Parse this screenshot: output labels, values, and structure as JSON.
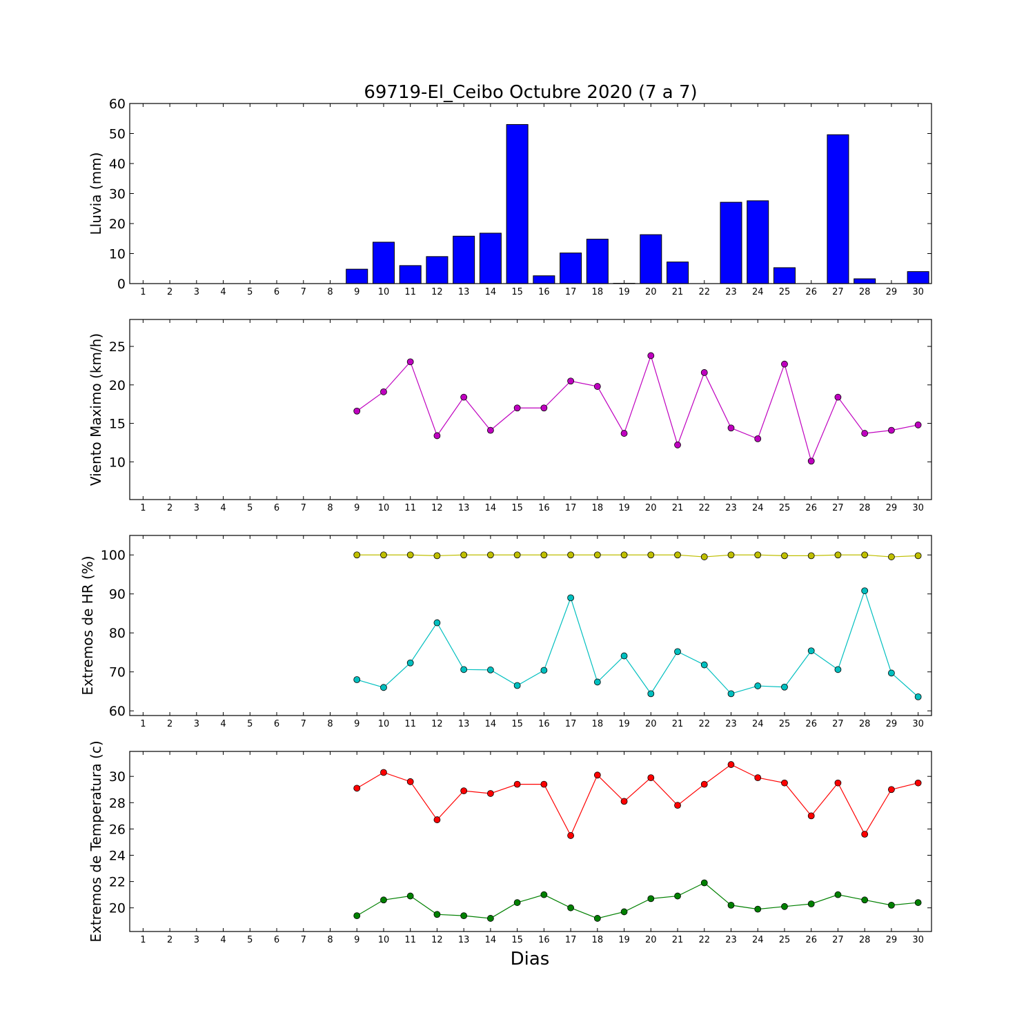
{
  "title": "69719-El_Ceibo Octubre 2020  (7 a 7)",
  "xlabel": "Dias",
  "days": [
    1,
    2,
    3,
    4,
    5,
    6,
    7,
    8,
    9,
    10,
    11,
    12,
    13,
    14,
    15,
    16,
    17,
    18,
    19,
    20,
    21,
    22,
    23,
    24,
    25,
    26,
    27,
    28,
    29,
    30
  ],
  "chart_data": [
    {
      "type": "bar",
      "ylabel": "Lluvia (mm)",
      "ylim": [
        0,
        60
      ],
      "yticks": [
        0,
        10,
        20,
        30,
        40,
        50,
        60
      ],
      "categories": [
        1,
        2,
        3,
        4,
        5,
        6,
        7,
        8,
        9,
        10,
        11,
        12,
        13,
        14,
        15,
        16,
        17,
        18,
        19,
        20,
        21,
        22,
        23,
        24,
        25,
        26,
        27,
        28,
        29,
        30
      ],
      "values": [
        null,
        null,
        null,
        null,
        null,
        null,
        null,
        null,
        4.8,
        13.8,
        6.0,
        9.0,
        15.8,
        16.8,
        53.0,
        2.6,
        10.2,
        14.8,
        0.1,
        16.3,
        7.2,
        0.0,
        27.1,
        27.6,
        5.3,
        0.0,
        49.6,
        1.6,
        0.0,
        4.0
      ],
      "colors": {
        "fill": "#0000ff",
        "edge": "#000000"
      }
    },
    {
      "type": "line",
      "ylabel": "Viento Maximo (km/h)",
      "ylim": [
        5.1,
        28.5
      ],
      "yticks": [
        10,
        15,
        20,
        25
      ],
      "x": [
        9,
        10,
        11,
        12,
        13,
        14,
        15,
        16,
        17,
        18,
        19,
        20,
        21,
        22,
        23,
        24,
        25,
        26,
        27,
        28,
        29,
        30
      ],
      "series": [
        {
          "values": [
            16.6,
            19.1,
            23.0,
            13.4,
            18.4,
            14.1,
            17.0,
            17.0,
            20.5,
            19.8,
            13.7,
            23.8,
            12.2,
            21.6,
            14.4,
            13.0,
            22.7,
            10.1,
            18.4,
            13.7,
            14.1,
            14.8
          ],
          "color": "#bf00bf"
        }
      ]
    },
    {
      "type": "line",
      "ylabel": "Extremos de HR (%)",
      "ylim": [
        58.8,
        105.0
      ],
      "yticks": [
        60,
        70,
        80,
        90,
        100
      ],
      "x": [
        9,
        10,
        11,
        12,
        13,
        14,
        15,
        16,
        17,
        18,
        19,
        20,
        21,
        22,
        23,
        24,
        25,
        26,
        27,
        28,
        29,
        30
      ],
      "series": [
        {
          "values": [
            100.0,
            100.0,
            100.0,
            99.8,
            100.0,
            100.0,
            100.0,
            100.0,
            100.0,
            100.0,
            100.0,
            100.0,
            100.0,
            99.5,
            100.0,
            100.0,
            99.8,
            99.8,
            100.0,
            100.0,
            99.5,
            99.8
          ],
          "color": "#bfbf00"
        },
        {
          "values": [
            68.0,
            66.0,
            72.3,
            82.6,
            70.6,
            70.5,
            66.5,
            70.4,
            89.0,
            67.4,
            74.1,
            64.4,
            75.2,
            71.8,
            64.4,
            66.4,
            66.1,
            75.4,
            70.6,
            90.8,
            69.7,
            63.6
          ],
          "color": "#00bfbf"
        }
      ]
    },
    {
      "type": "line",
      "ylabel": "Extremos de Temperatura (c)",
      "ylim": [
        18.2,
        31.9
      ],
      "yticks": [
        20,
        22,
        24,
        26,
        28,
        30
      ],
      "x": [
        9,
        10,
        11,
        12,
        13,
        14,
        15,
        16,
        17,
        18,
        19,
        20,
        21,
        22,
        23,
        24,
        25,
        26,
        27,
        28,
        29,
        30
      ],
      "series": [
        {
          "values": [
            29.1,
            30.3,
            29.6,
            26.7,
            28.9,
            28.7,
            29.4,
            29.4,
            25.5,
            30.1,
            28.1,
            29.9,
            27.8,
            29.4,
            30.9,
            29.9,
            29.5,
            27.0,
            29.5,
            25.6,
            29.0,
            29.5
          ],
          "color": "#ff0000"
        },
        {
          "values": [
            19.4,
            20.6,
            20.9,
            19.5,
            19.4,
            19.2,
            20.4,
            21.0,
            20.0,
            19.2,
            19.7,
            20.7,
            20.9,
            21.9,
            20.2,
            19.9,
            20.1,
            20.3,
            21.0,
            20.6,
            20.2,
            20.4
          ],
          "color": "#008000"
        }
      ]
    }
  ]
}
